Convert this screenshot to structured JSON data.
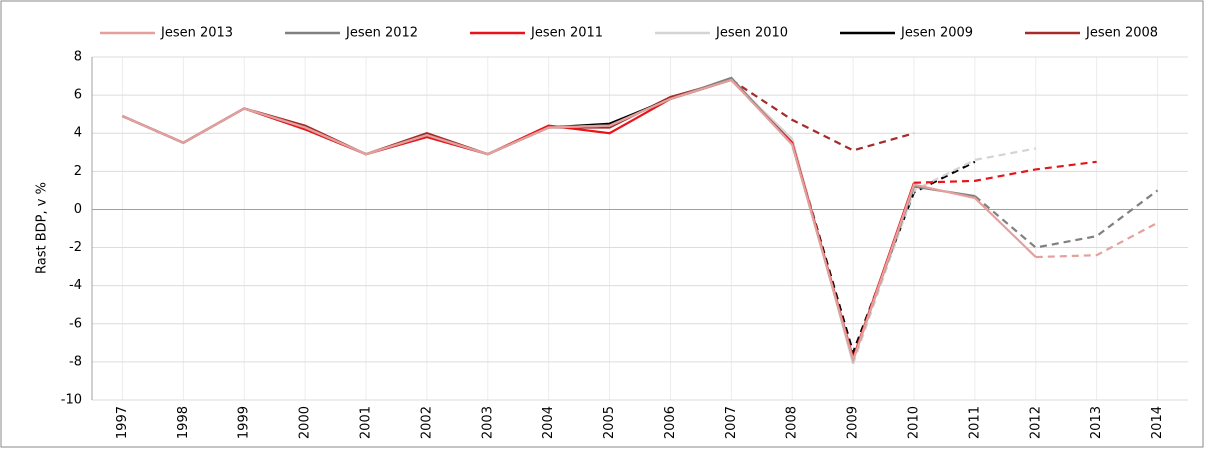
{
  "chart_data": {
    "type": "line",
    "y_label": "Rast BDP, v %",
    "categories": [
      "1997",
      "1998",
      "1999",
      "2000",
      "2001",
      "2002",
      "2003",
      "2004",
      "2005",
      "2006",
      "2007",
      "2008",
      "2009",
      "2010",
      "2011",
      "2012",
      "2013",
      "2014"
    ],
    "ylim": [
      -10,
      8
    ],
    "yticks": [
      -10,
      -8,
      -6,
      -4,
      -2,
      0,
      2,
      4,
      6,
      8
    ],
    "grid": true,
    "series": [
      {
        "name": "Jesen 2013",
        "color": "#e3a09c",
        "dash_from": "2013",
        "values": [
          4.9,
          3.5,
          5.3,
          4.3,
          2.9,
          3.9,
          2.9,
          4.3,
          4.4,
          5.8,
          6.8,
          3.4,
          -7.9,
          1.3,
          0.6,
          -2.5,
          -2.4,
          -0.7
        ]
      },
      {
        "name": "Jesen 2012",
        "color": "#808080",
        "dash_from": "2012",
        "values": [
          4.9,
          3.5,
          5.3,
          4.3,
          2.9,
          3.9,
          2.9,
          4.3,
          4.4,
          5.8,
          6.9,
          3.4,
          -7.9,
          1.2,
          0.7,
          -2.0,
          -1.4,
          1.0
        ]
      },
      {
        "name": "Jesen 2011",
        "color": "#e8141a",
        "dash_from": "2011",
        "values": [
          4.9,
          3.5,
          5.3,
          4.2,
          2.9,
          3.8,
          2.9,
          4.4,
          4.0,
          5.8,
          6.8,
          3.5,
          -7.8,
          1.4,
          1.5,
          2.1,
          2.5,
          null
        ]
      },
      {
        "name": "Jesen 2010",
        "color": "#d4d4d4",
        "dash_from": "2010",
        "values": [
          4.9,
          3.5,
          5.3,
          4.3,
          2.9,
          3.9,
          2.9,
          4.3,
          4.4,
          5.8,
          6.8,
          3.7,
          -8.1,
          1.0,
          2.6,
          3.2,
          null,
          null
        ]
      },
      {
        "name": "Jesen 2009",
        "color": "#000000",
        "dash_from": "2009",
        "values": [
          4.9,
          3.5,
          5.3,
          4.3,
          2.9,
          3.9,
          2.9,
          4.3,
          4.5,
          5.8,
          6.8,
          3.5,
          -7.5,
          0.9,
          2.5,
          null,
          null,
          null
        ]
      },
      {
        "name": "Jesen 2008",
        "color": "#a52a2a",
        "dash_from": "2008",
        "values": [
          4.9,
          3.5,
          5.3,
          4.4,
          2.9,
          4.0,
          2.9,
          4.3,
          4.3,
          5.9,
          6.8,
          4.7,
          3.1,
          4.0,
          null,
          null,
          null,
          null
        ]
      }
    ]
  }
}
